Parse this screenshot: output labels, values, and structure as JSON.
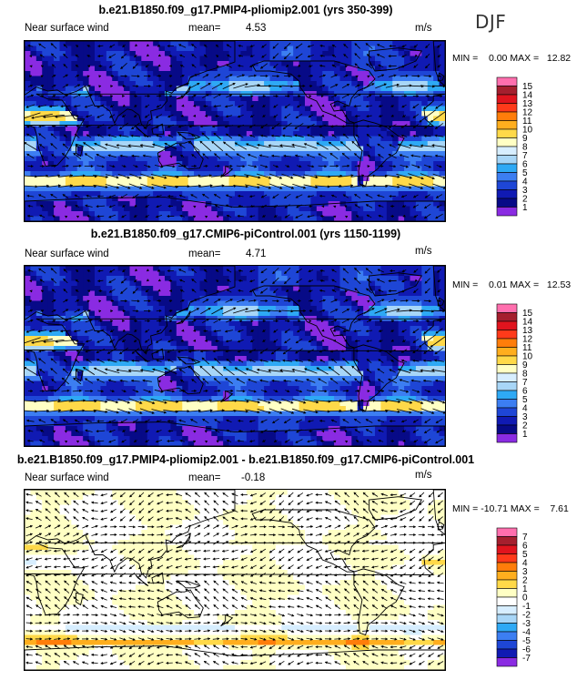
{
  "season": "DJF",
  "panels": [
    {
      "title": "b.e21.B1850.f09_g17.PMIP4-pliomip2.001 (yrs 350-399)",
      "field_label": "Near surface wind",
      "mean_label": "mean=",
      "mean_value": "4.53",
      "units": "m/s",
      "min_max": "MIN =    0.00 MAX =   12.82",
      "colorbar_labels": [
        "15",
        "14",
        "13",
        "12",
        "11",
        "10",
        "9",
        "8",
        "7",
        "6",
        "5",
        "4",
        "3",
        "2",
        "1"
      ],
      "colorbar_colors": [
        "#ff6fae",
        "#a51f2e",
        "#e0141e",
        "#ff3a1a",
        "#ff7d0a",
        "#ffae1e",
        "#ffd949",
        "#ffffc4",
        "#d7eeff",
        "#a8d6f7",
        "#2ea9f5",
        "#3c7ef2",
        "#1e46d6",
        "#101ab3",
        "#070a87",
        "#8a2be2"
      ],
      "kind": "absolute"
    },
    {
      "title": "b.e21.B1850.f09_g17.CMIP6-piControl.001 (yrs 1150-1199)",
      "field_label": "Near surface wind",
      "mean_label": "mean=",
      "mean_value": "4.71",
      "units": "m/s",
      "min_max": "MIN =    0.01 MAX =   12.53",
      "colorbar_labels": [
        "15",
        "14",
        "13",
        "12",
        "11",
        "10",
        "9",
        "8",
        "7",
        "6",
        "5",
        "4",
        "3",
        "2",
        "1"
      ],
      "colorbar_colors": [
        "#ff6fae",
        "#a51f2e",
        "#e0141e",
        "#ff3a1a",
        "#ff7d0a",
        "#ffae1e",
        "#ffd949",
        "#ffffc4",
        "#d7eeff",
        "#a8d6f7",
        "#2ea9f5",
        "#3c7ef2",
        "#1e46d6",
        "#101ab3",
        "#070a87",
        "#8a2be2"
      ],
      "kind": "absolute"
    },
    {
      "title": "b.e21.B1850.f09_g17.PMIP4-pliomip2.001 - b.e21.B1850.f09_g17.CMIP6-piControl.001",
      "field_label": "Near surface wind",
      "mean_label": "mean=",
      "mean_value": "-0.18",
      "units": "m/s",
      "min_max": "MIN = -10.71 MAX =    7.61",
      "colorbar_labels": [
        "7",
        "6",
        "5",
        "4",
        "3",
        "2",
        "1",
        "0",
        "-1",
        "-2",
        "-3",
        "-4",
        "-5",
        "-6",
        "-7"
      ],
      "colorbar_colors": [
        "#ff6fae",
        "#a51f2e",
        "#e0141e",
        "#ff3a1a",
        "#ff7d0a",
        "#ffae1e",
        "#ffd949",
        "#ffffc4",
        "#ffffff",
        "#d7eeff",
        "#a8d6f7",
        "#2ea9f5",
        "#3c7ef2",
        "#1e46d6",
        "#101ab3",
        "#8a2be2"
      ],
      "kind": "difference"
    }
  ],
  "chart_data": {
    "type": "heatmap",
    "description_fields": "Global maps of near surface wind speed (shaded) with wind vectors, DJF",
    "panels": [
      {
        "title": "b.e21.B1850.f09_g17.PMIP4-pliomip2.001 (yrs 350-399)",
        "mean": 4.53,
        "min": 0.0,
        "max": 12.82,
        "units": "m/s",
        "levels": [
          1,
          2,
          3,
          4,
          5,
          6,
          7,
          8,
          9,
          10,
          11,
          12,
          13,
          14,
          15
        ]
      },
      {
        "title": "b.e21.B1850.f09_g17.CMIP6-piControl.001 (yrs 1150-1199)",
        "mean": 4.71,
        "min": 0.01,
        "max": 12.53,
        "units": "m/s",
        "levels": [
          1,
          2,
          3,
          4,
          5,
          6,
          7,
          8,
          9,
          10,
          11,
          12,
          13,
          14,
          15
        ]
      },
      {
        "title": "b.e21.B1850.f09_g17.PMIP4-pliomip2.001 - b.e21.B1850.f09_g17.CMIP6-piControl.001",
        "mean": -0.18,
        "min": -10.71,
        "max": 7.61,
        "units": "m/s",
        "levels": [
          -7,
          -6,
          -5,
          -4,
          -3,
          -2,
          -1,
          0,
          1,
          2,
          3,
          4,
          5,
          6,
          7
        ]
      }
    ]
  }
}
